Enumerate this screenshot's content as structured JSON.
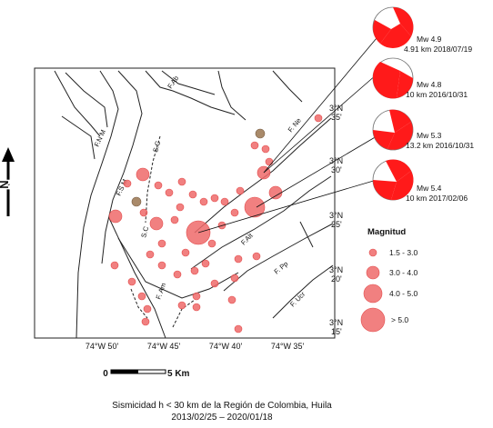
{
  "map": {
    "fault_labels": [
      "F.Ab",
      "F.N M",
      "S.C",
      "F.S M",
      "S.C",
      "F.Alt",
      "F. Ne",
      "F. Am",
      "F. Pp",
      "F. Ucr"
    ],
    "lon_ticks": [
      "74°W 50'",
      "74°W 45'",
      "74°W 40'",
      "74°W 35'"
    ],
    "lat_ticks": [
      {
        "deg": "3°N",
        "min": "35'"
      },
      {
        "deg": "3°N",
        "min": "30'"
      },
      {
        "deg": "3°N",
        "min": "25'"
      },
      {
        "deg": "3°N",
        "min": "20'"
      },
      {
        "deg": "3°N",
        "min": "15'"
      }
    ],
    "north_label": "N",
    "scale": {
      "start": "0",
      "end": "5 Km"
    },
    "quake_color": "#ef6a6a",
    "deep_quake_color": "#a98a6a"
  },
  "mechanisms": [
    {
      "magnitude": "Mw 4.9",
      "detail": "4.91 km 2018/07/19",
      "color": "#ff1a1a"
    },
    {
      "magnitude": "Mw 4.8",
      "detail": "10 km 2016/10/31",
      "color": "#ff1a1a"
    },
    {
      "magnitude": "Mw 5.3",
      "detail": "13.2 km 2016/10/31",
      "color": "#ff1a1a"
    },
    {
      "magnitude": "Mw 5.4",
      "detail": "10 km 2017/02/06",
      "color": "#ff1a1a"
    }
  ],
  "legend": {
    "title": "Magnitud",
    "items": [
      {
        "label": "1.5 - 3.0"
      },
      {
        "label": "3.0 - 4.0"
      },
      {
        "label": "4.0 - 5.0"
      },
      {
        "label": "> 5.0"
      }
    ]
  },
  "caption": {
    "line1": "Sismicidad h < 30 km de la Región de Colombia, Huila",
    "line2": "2013/02/25 – 2020/01/18"
  }
}
